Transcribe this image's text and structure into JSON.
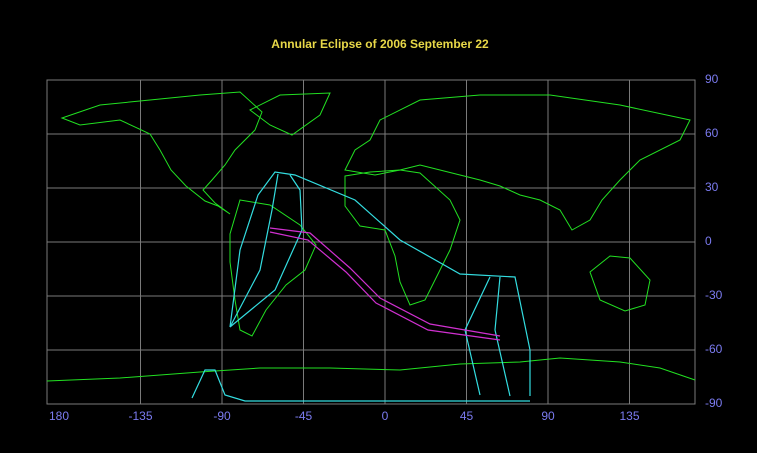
{
  "map": {
    "title": "Annular Eclipse of 2006 September 22",
    "longitude_labels": [
      "180",
      "-135",
      "-90",
      "-45",
      "0",
      "45",
      "90",
      "135"
    ],
    "latitude_labels": [
      "90",
      "60",
      "30",
      "0",
      "-30",
      "-60",
      "-90"
    ]
  }
}
